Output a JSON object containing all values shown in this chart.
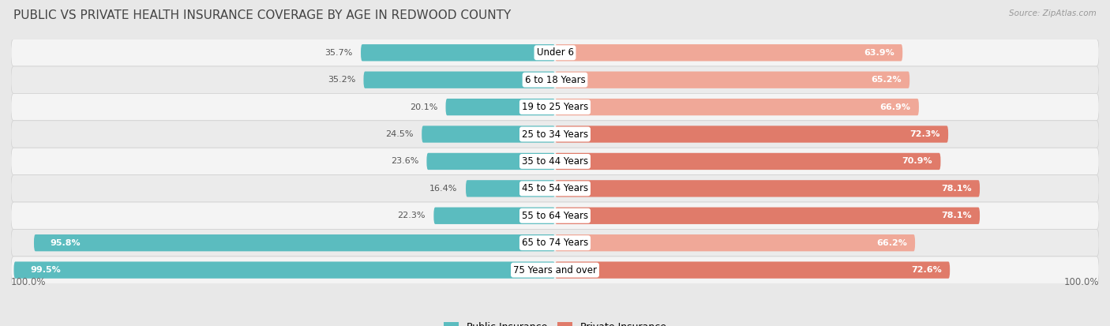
{
  "title": "PUBLIC VS PRIVATE HEALTH INSURANCE COVERAGE BY AGE IN REDWOOD COUNTY",
  "source": "Source: ZipAtlas.com",
  "categories": [
    "Under 6",
    "6 to 18 Years",
    "19 to 25 Years",
    "25 to 34 Years",
    "35 to 44 Years",
    "45 to 54 Years",
    "55 to 64 Years",
    "65 to 74 Years",
    "75 Years and over"
  ],
  "public_values": [
    35.7,
    35.2,
    20.1,
    24.5,
    23.6,
    16.4,
    22.3,
    95.8,
    99.5
  ],
  "private_values": [
    63.9,
    65.2,
    66.9,
    72.3,
    70.9,
    78.1,
    78.1,
    66.2,
    72.6
  ],
  "public_color": "#5bbcbf",
  "private_color": "#e07b6a",
  "private_color_light": "#f0a898",
  "bg_color": "#e8e8e8",
  "row_color_odd": "#f0f0f0",
  "row_color_even": "#e8e8e8",
  "title_fontsize": 11,
  "bar_height": 0.62,
  "xlim_left": -100,
  "xlim_right": 100,
  "legend_public": "Public Insurance",
  "legend_private": "Private Insurance",
  "label_fontsize": 8.0,
  "category_fontsize": 8.5
}
